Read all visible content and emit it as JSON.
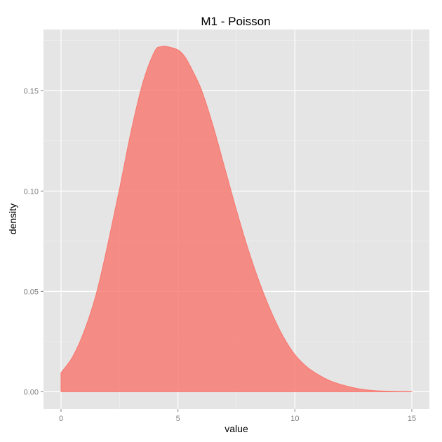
{
  "chart_data": {
    "type": "area",
    "title": "M1 - Poisson",
    "xlabel": "value",
    "ylabel": "density",
    "xlim": [
      -0.75,
      15.75
    ],
    "ylim": [
      -0.0086,
      0.1805
    ],
    "grid": true,
    "x_ticks": [
      0,
      5,
      10,
      15
    ],
    "x_tick_labels": [
      "0",
      "5",
      "10",
      "15"
    ],
    "y_ticks": [
      0,
      0.05,
      0.1,
      0.15
    ],
    "y_tick_labels": [
      "0.00",
      "0.05",
      "0.10",
      "0.15"
    ],
    "series": [
      {
        "fill": "#F8766D",
        "x": [
          0,
          0.5,
          1,
          1.5,
          2,
          2.5,
          3,
          3.5,
          4,
          4.3,
          4.6,
          5,
          5.3,
          5.6,
          6,
          6.5,
          7,
          7.5,
          8,
          8.5,
          9,
          9.5,
          10,
          10.5,
          11,
          11.5,
          12,
          12.5,
          13,
          13.5,
          14,
          14.5,
          15
        ],
        "y": [
          0.0095,
          0.0175,
          0.0305,
          0.0485,
          0.0735,
          0.101,
          0.13,
          0.154,
          0.1695,
          0.172,
          0.1718,
          0.1703,
          0.1668,
          0.1605,
          0.1505,
          0.1325,
          0.1115,
          0.0905,
          0.071,
          0.054,
          0.0395,
          0.0275,
          0.0185,
          0.0125,
          0.0085,
          0.0055,
          0.0035,
          0.002,
          0.001,
          0.0005,
          0.0003,
          0.0002,
          0.0001
        ]
      }
    ]
  }
}
